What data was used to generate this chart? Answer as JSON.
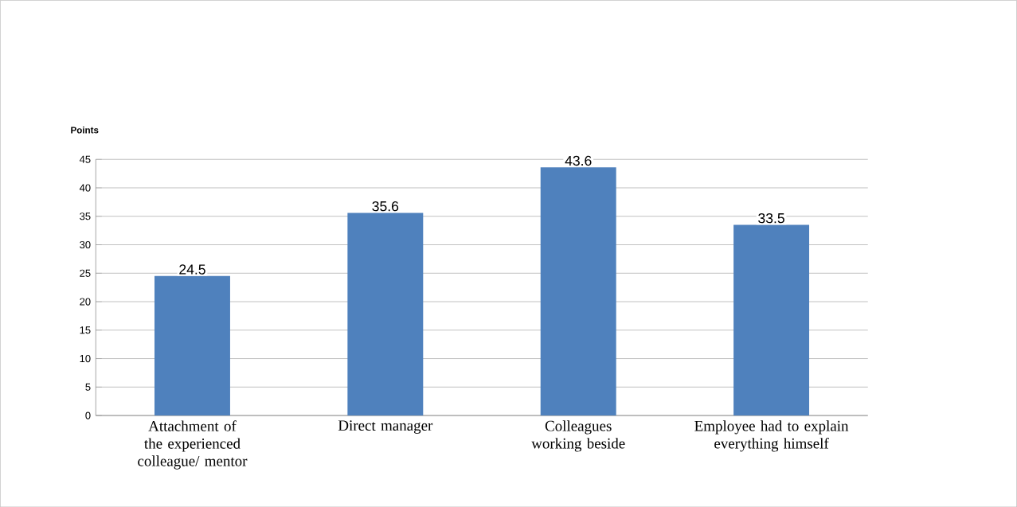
{
  "chart_data": {
    "type": "bar",
    "ylabel": "Points",
    "categories": [
      "Attachment of the experienced colleague/ mentor",
      "Direct manager",
      "Colleagues working beside",
      "Employee had to explain everything himself"
    ],
    "values": [
      24.5,
      35.6,
      43.6,
      33.5
    ],
    "color": "#4f81bd",
    "data_labels": true,
    "ylim": [
      0,
      45
    ],
    "yticks": [
      0,
      5,
      10,
      15,
      20,
      25,
      30,
      35,
      40,
      45
    ],
    "grid": "y"
  }
}
